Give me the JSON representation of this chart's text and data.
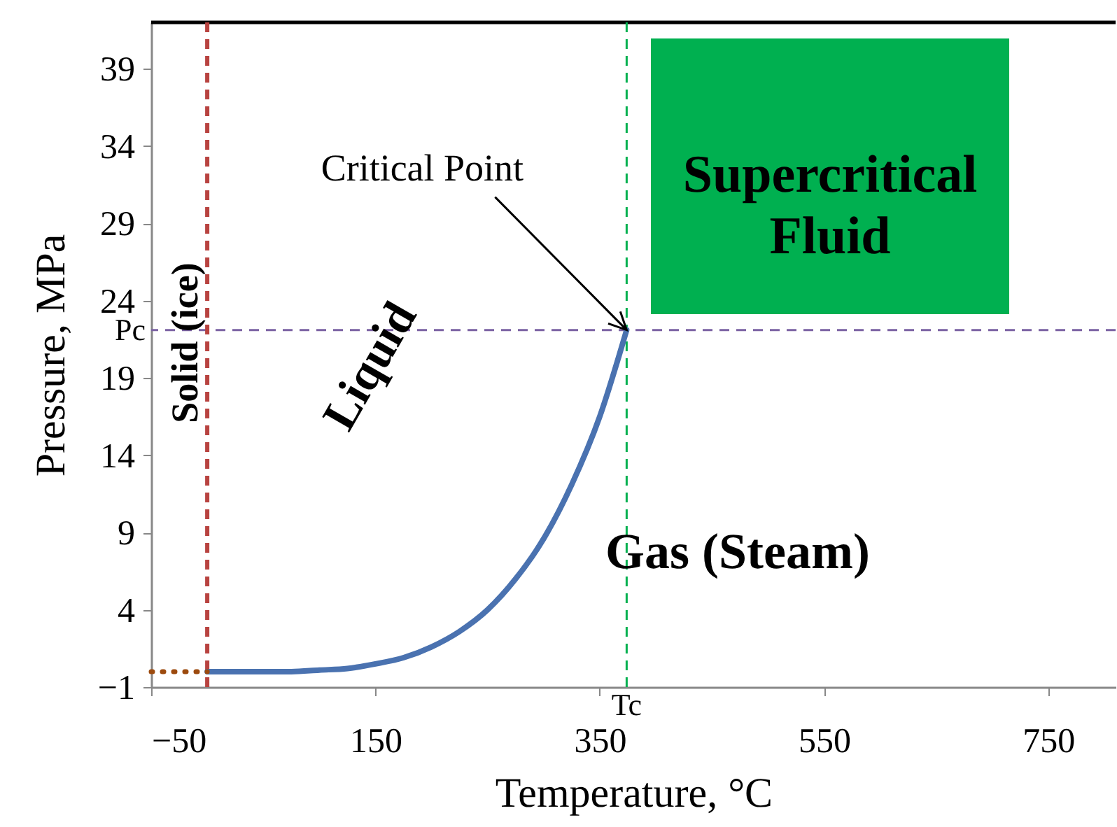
{
  "chart_data": {
    "type": "line",
    "xlabel": "Temperature, °C",
    "ylabel": "Pressure, MPa",
    "xlim": [
      -50,
      810
    ],
    "ylim": [
      -1,
      42
    ],
    "xticks": [
      -50,
      150,
      350,
      550,
      750
    ],
    "yticks": [
      -1,
      4,
      9,
      14,
      19,
      24,
      29,
      34,
      39
    ],
    "series": [
      {
        "color": "#4a72b0",
        "line_style": "solid",
        "x": [
          0,
          25,
          50,
          75,
          100,
          125,
          150,
          175,
          200,
          225,
          250,
          275,
          300,
          325,
          350,
          374
        ],
        "values": [
          0,
          0,
          0,
          0,
          0.1,
          0.2,
          0.5,
          0.9,
          1.6,
          2.6,
          4,
          6,
          8.6,
          12.1,
          16.5,
          22.1
        ]
      },
      {
        "color": "#9c4a0e",
        "line_style": "dotted",
        "x": [
          -50,
          0
        ],
        "values": [
          0,
          0
        ]
      }
    ],
    "ref_lines": [
      {
        "axis": "x",
        "value": 0,
        "color": "#b84340",
        "line_style": "dashed"
      },
      {
        "axis": "x",
        "value": 374,
        "label": "Tc",
        "color": "#00b050",
        "line_style": "dashed"
      },
      {
        "axis": "y",
        "value": 22.1,
        "label": "Pc",
        "color": "#7b62a3",
        "line_style": "dashed"
      }
    ],
    "annotations": [
      {
        "text": "Critical Point",
        "x": 374,
        "y": 22.1
      },
      "Solid (ice)",
      "Liquid",
      "Gas (Steam)",
      "Supercritical Fluid"
    ],
    "grid": false
  }
}
